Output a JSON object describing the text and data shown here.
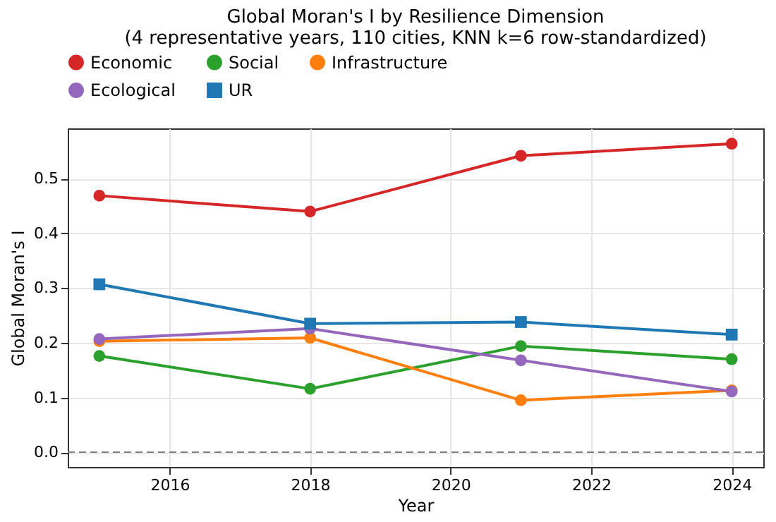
{
  "chart_data": {
    "type": "line",
    "title": "Global Moran's I by Resilience Dimension",
    "subtitle": "(4 representative years, 110 cities, KNN k=6 row-standardized)",
    "xlabel": "Year",
    "ylabel": "Global Moran's I",
    "x": [
      2015,
      2018,
      2021,
      2024
    ],
    "series": [
      {
        "name": "Economic",
        "color": "#d62728",
        "marker": "circle",
        "values": [
          0.469,
          0.44,
          0.542,
          0.564
        ]
      },
      {
        "name": "Social",
        "color": "#2ca02c",
        "marker": "circle",
        "values": [
          0.176,
          0.116,
          0.194,
          0.17
        ]
      },
      {
        "name": "Infrastructure",
        "color": "#ff7f0e",
        "marker": "circle",
        "values": [
          0.203,
          0.209,
          0.095,
          0.113
        ]
      },
      {
        "name": "Ecological",
        "color": "#9467bd",
        "marker": "circle",
        "values": [
          0.207,
          0.226,
          0.168,
          0.111
        ]
      },
      {
        "name": "UR",
        "color": "#1f77b4",
        "marker": "square",
        "values": [
          0.307,
          0.235,
          0.238,
          0.215
        ]
      }
    ],
    "xlim": [
      2014.55,
      2024.45
    ],
    "xticks": [
      2016,
      2018,
      2020,
      2022,
      2024
    ],
    "ylim": [
      -0.027,
      0.592
    ],
    "yticks": [
      {
        "value": 0,
        "label": "0.0"
      },
      {
        "value": 0.1,
        "label": "0.1"
      },
      {
        "value": 0.2,
        "label": "0.2"
      },
      {
        "value": 0.3,
        "label": "0.3"
      },
      {
        "value": 0.4,
        "label": "0.4"
      },
      {
        "value": 0.5,
        "label": "0.5"
      }
    ],
    "ref_lines": [
      {
        "axis": "y",
        "value": 0,
        "color": "#808080",
        "line_style": "dashed"
      }
    ],
    "grid": true,
    "legend": "top",
    "line_style": "solid"
  }
}
